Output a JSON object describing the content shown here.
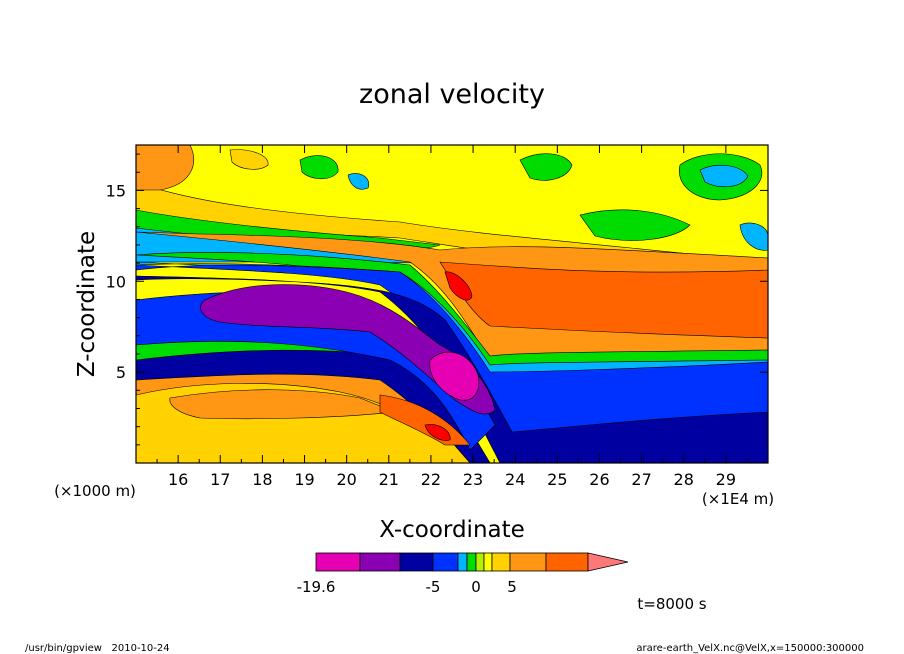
{
  "chart_data": {
    "type": "heatmap",
    "title": "zonal velocity",
    "xlabel": "X-coordinate",
    "ylabel": "Z-coordinate",
    "x_unit_label": "(×1E4 m)",
    "y_unit_label": "(×1000 m)",
    "x_ticks": [
      "16",
      "17",
      "18",
      "19",
      "20",
      "21",
      "22",
      "23",
      "24",
      "25",
      "26",
      "27",
      "28",
      "29"
    ],
    "y_ticks": [
      "5",
      "10",
      "15"
    ],
    "xlim": [
      15.0,
      30.0
    ],
    "ylim": [
      0.0,
      17.5
    ],
    "colorbar": {
      "levels": [
        -19.6,
        -15,
        -10,
        -5,
        -3,
        -1,
        0,
        1,
        3,
        5,
        10,
        15,
        20
      ],
      "tick_labels": [
        "-19.6",
        "-5",
        "0",
        "5"
      ],
      "colors": [
        "#e600b4",
        "#8c00b4",
        "#0000a0",
        "#0032ff",
        "#00b4ff",
        "#00dc00",
        "#b4f000",
        "#ffff00",
        "#ffd200",
        "#ff9614",
        "#ff6400",
        "#ff0000"
      ],
      "extend_color": "#ff7878"
    },
    "time_label": "t=8000 s"
  },
  "footer": {
    "left": "/usr/bin/gpview   2010-10-24",
    "right": "arare-earth_VelX.nc@VelX,x=150000:300000"
  }
}
